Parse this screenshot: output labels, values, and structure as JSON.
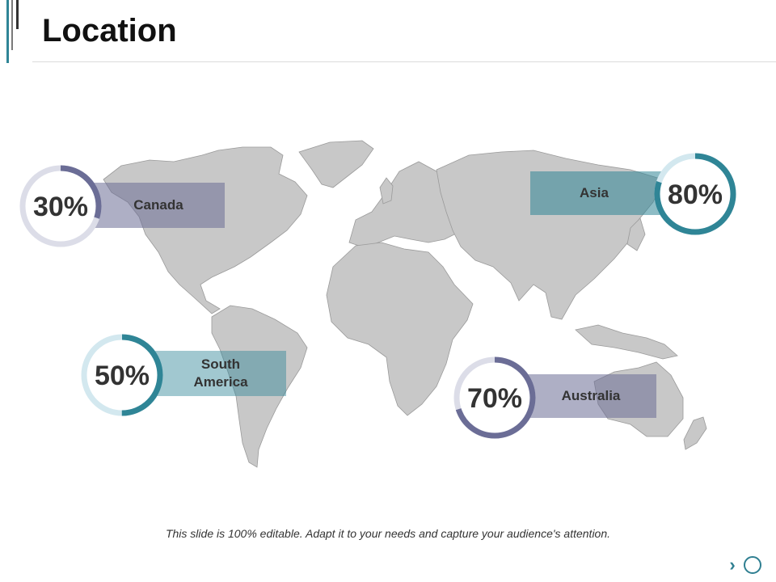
{
  "slide": {
    "title": "Location",
    "footer": "This slide is 100% editable. Adapt it to your needs and capture your audience's attention."
  },
  "colors": {
    "dark_slate": "#6b6d96",
    "teal": "#2f8596",
    "light_track_gray": "#dcdde8",
    "light_track_blue": "#d3e8ef"
  },
  "locations": [
    {
      "name": "Canada",
      "percent": 30,
      "percent_label": "30%",
      "ring_color": "#6b6d96",
      "track_color": "#dcdde8",
      "box_color": "#8b8cae"
    },
    {
      "name": "Asia",
      "percent": 80,
      "percent_label": "80%",
      "ring_color": "#2f8596",
      "track_color": "#d3e8ef",
      "box_color": "#5c9ea7"
    },
    {
      "name": "South\nAmerica",
      "percent": 50,
      "percent_label": "50%",
      "ring_color": "#2f8596",
      "track_color": "#d3e8ef",
      "box_color": "#7eb4bd"
    },
    {
      "name": "Australia",
      "percent": 70,
      "percent_label": "70%",
      "ring_color": "#6b6d96",
      "track_color": "#dcdde8",
      "box_color": "#9a9cbc"
    }
  ],
  "nav": {
    "next_icon": "chevron-right-icon",
    "next_glyph": "›"
  }
}
